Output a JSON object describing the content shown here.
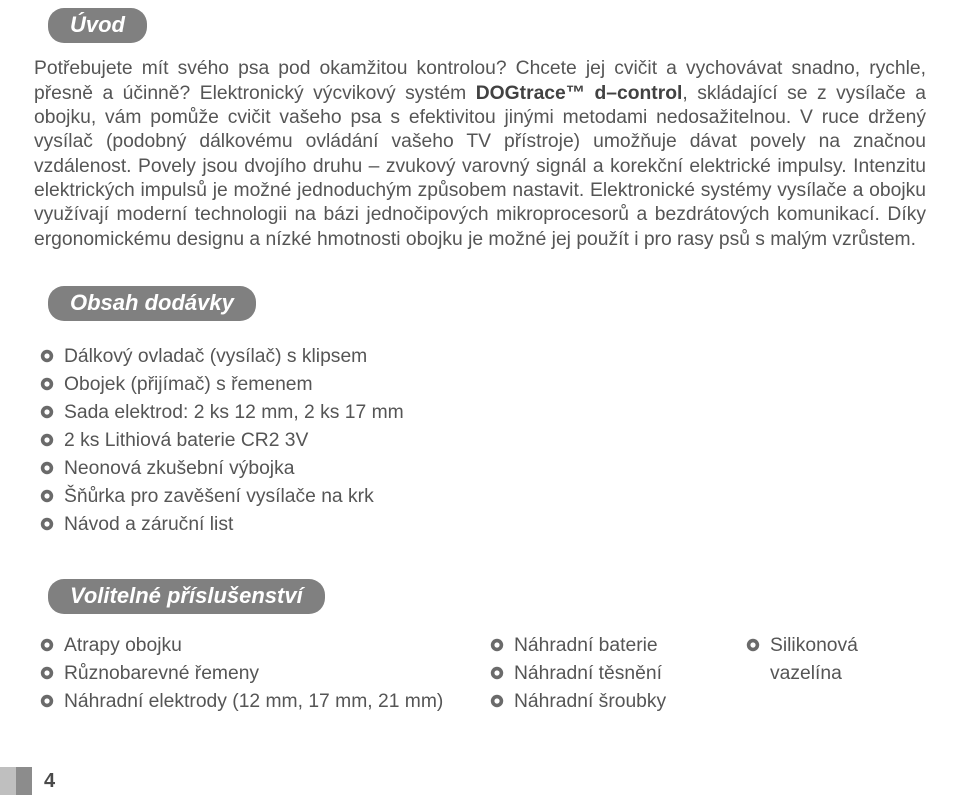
{
  "colors": {
    "header_bg": "#808080",
    "header_text": "#ffffff",
    "body_text": "#555555",
    "bold_text": "#424242",
    "bullet_outer": "#6a6a6a",
    "bullet_inner": "#ffffff",
    "page_bg": "#ffffff",
    "tab_light": "#bfbfbf",
    "tab_dark": "#8c8c8c"
  },
  "typography": {
    "header_fontsize": 22,
    "header_style": "italic",
    "header_weight": 600,
    "body_fontsize": 19.3,
    "body_lineheight": 1.26,
    "list_lineheight": 1.45,
    "page_number_fontsize": 20,
    "page_number_weight": 700
  },
  "sections": {
    "intro": {
      "title": "Úvod",
      "text_pre": "Potřebujete mít svého psa pod okamžitou kontrolou? Chcete jej cvičit a vychovávat snadno, rychle, přesně a účinně? Elektronický výcvikový systém ",
      "text_bold": "DOGtrace™ d–control",
      "text_post": ", skládající se z vysílače a obojku, vám pomůže cvičit vašeho psa s efektivitou jinými metodami nedosažitelnou. V ruce držený vysílač (podobný dálkovému ovládání vašeho TV přístroje) umožňuje dávat povely na značnou vzdálenost. Povely jsou dvojího druhu – zvukový varovný signál a korekční elektrické impulsy. Intenzitu elektrických impulsů je možné jednoduchým způsobem nastavit. Elektronické systémy vysílače a obojku využívají moderní technologii na bázi jednočipových mikroprocesorů a bezdrátových komunikací. Díky ergonomickému designu a nízké hmotnosti obojku je možné jej použít i pro rasy psů s malým vzrůstem."
    },
    "contents": {
      "title": "Obsah dodávky",
      "items": [
        "Dálkový ovladač (vysílač) s klipsem",
        "Obojek (přijímač) s řemenem",
        "Sada elektrod: 2 ks 12 mm, 2 ks 17 mm",
        "2 ks Lithiová baterie CR2 3V",
        "Neonová zkušební výbojka",
        "Šňůrka pro zavěšení vysílače na krk",
        "Návod a záruční list"
      ]
    },
    "accessories": {
      "title": "Volitelné příslušenství",
      "col1": [
        "Atrapy obojku",
        "Různobarevné řemeny",
        "Náhradní elektrody (12 mm, 17 mm, 21 mm)"
      ],
      "col2": [
        "Náhradní baterie",
        "Náhradní těsnění",
        "Náhradní šroubky"
      ],
      "col3": [
        "Silikonová vazelína"
      ]
    }
  },
  "page_number": "4"
}
